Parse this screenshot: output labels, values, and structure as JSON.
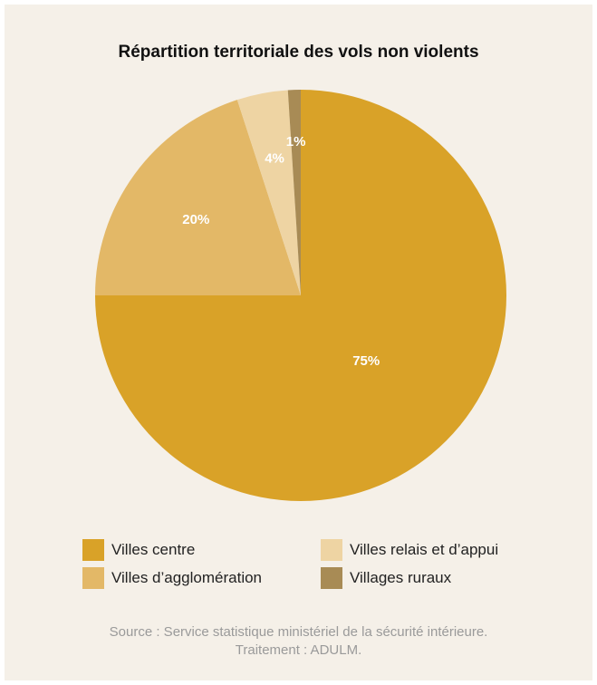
{
  "chart_data": {
    "type": "pie",
    "title": "Répartition territoriale des vols non violents",
    "slices": [
      {
        "name": "Villes centre",
        "value": 75,
        "label": "75%",
        "color": "#d9a228"
      },
      {
        "name": "Villes d’agglomération",
        "value": 20,
        "label": "20%",
        "color": "#e3b867"
      },
      {
        "name": "Villes relais et d’appui",
        "value": 4,
        "label": "4%",
        "color": "#eed4a3"
      },
      {
        "name": "Villages ruraux",
        "value": 1,
        "label": "1%",
        "color": "#a88b55"
      }
    ],
    "legend_position": "bottom"
  },
  "source": {
    "line1": "Source : Service statistique ministériel de la sécurité intérieure.",
    "line2": "Traitement : ADULM."
  }
}
